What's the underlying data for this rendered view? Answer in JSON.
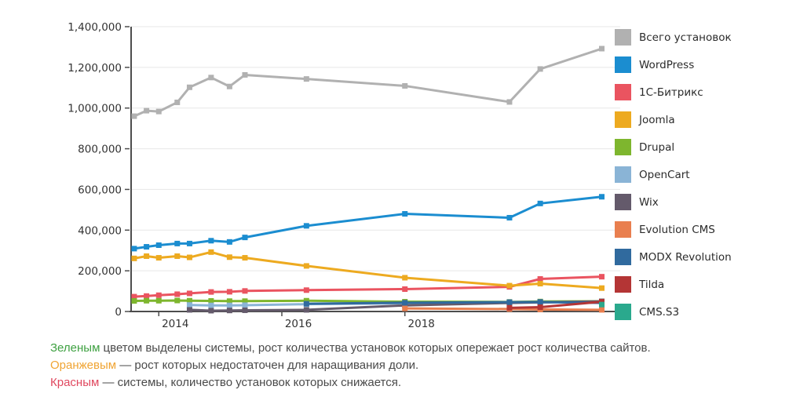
{
  "chart_data": {
    "type": "line",
    "title": "",
    "xlabel": "",
    "ylabel": "",
    "grid": true,
    "legend_position": "right",
    "xlim": [
      2013.55,
      2021.5
    ],
    "ylim": [
      0,
      1400000
    ],
    "y_ticks": [
      0,
      200000,
      400000,
      600000,
      800000,
      1000000,
      1200000,
      1400000
    ],
    "y_tick_labels": [
      "0",
      "200,000",
      "400,000",
      "600,000",
      "800,000",
      "1,000,000",
      "1,200,000",
      "1,400,000"
    ],
    "x_tick_positions": [
      2014,
      2016,
      2018
    ],
    "x_tick_labels": [
      "2014",
      "2016",
      "2018"
    ],
    "x": [
      2013.6,
      2013.8,
      2014.0,
      2014.3,
      2014.5,
      2014.85,
      2015.15,
      2015.4,
      2016.4,
      2018.0,
      2019.7,
      2020.2,
      2021.2
    ],
    "series": [
      {
        "id": "total-installs",
        "name": "Всего установок",
        "color": "#b1b1b1",
        "values": [
          960000,
          987000,
          983000,
          1028000,
          1102000,
          1150000,
          1106000,
          1163000,
          1143000,
          1109000,
          1030000,
          1192000,
          1292000
        ]
      },
      {
        "id": "wordpress",
        "name": "WordPress",
        "color": "#1b8dd0",
        "values": [
          309000,
          318000,
          326000,
          334000,
          334000,
          348000,
          342000,
          364000,
          421000,
          480000,
          461000,
          531000,
          564000
        ]
      },
      {
        "id": "1c-bitrix",
        "name": "1С-Битрикс",
        "color": "#ea5460",
        "values": [
          73000,
          76000,
          80000,
          85000,
          89000,
          96000,
          97000,
          101000,
          105000,
          110000,
          121000,
          160000,
          171000
        ]
      },
      {
        "id": "joomla",
        "name": "Joomla",
        "color": "#edaa20",
        "values": [
          261000,
          272000,
          264000,
          272000,
          266000,
          292000,
          267000,
          264000,
          224000,
          166000,
          127000,
          137000,
          115000
        ]
      },
      {
        "id": "drupal",
        "name": "Drupal",
        "color": "#7eb62e",
        "values": [
          52000,
          53000,
          53000,
          54000,
          53000,
          52000,
          51000,
          51000,
          53000,
          48000,
          47000,
          49000,
          50000
        ]
      },
      {
        "id": "opencart",
        "name": "OpenCart",
        "color": "#8ab4d6",
        "values": [
          null,
          null,
          null,
          null,
          32000,
          30000,
          30000,
          31000,
          36000,
          41000,
          44000,
          45000,
          46000
        ]
      },
      {
        "id": "wix",
        "name": "Wix",
        "color": "#645a6b",
        "values": [
          null,
          null,
          null,
          null,
          8000,
          4000,
          5000,
          6000,
          8000,
          30000,
          42000,
          45000,
          50000
        ]
      },
      {
        "id": "evolution-cms",
        "name": "Evolution CMS",
        "color": "#e97f4f",
        "values": [
          null,
          null,
          null,
          null,
          null,
          null,
          null,
          null,
          null,
          15000,
          12000,
          10000,
          8000
        ]
      },
      {
        "id": "modx-revolution",
        "name": "MODX Revolution",
        "color": "#306a9e",
        "values": [
          null,
          null,
          null,
          null,
          null,
          null,
          null,
          null,
          38000,
          43000,
          46000,
          47000,
          42000
        ]
      },
      {
        "id": "tilda",
        "name": "Tilda",
        "color": "#b43535",
        "values": [
          null,
          null,
          null,
          null,
          null,
          null,
          null,
          null,
          null,
          null,
          18000,
          21000,
          48000
        ]
      },
      {
        "id": "cms-s3",
        "name": "CMS.S3",
        "color": "#2aa98d",
        "values": [
          null,
          null,
          null,
          null,
          null,
          null,
          null,
          null,
          null,
          null,
          null,
          null,
          34000
        ]
      }
    ]
  },
  "annotations": {
    "green_lead": "Зеленым",
    "green_text": " цветом выделены системы, рост количества установок которых опережает рост количества сайтов.",
    "orange_lead": "Оранжевым",
    "orange_text": " — рост которых недостаточен для наращивания доли.",
    "red_lead": "Красным",
    "red_text": " — системы, количество установок которых снижается.",
    "colors": {
      "green": "#3fa142",
      "orange": "#f0a433",
      "red": "#e0485f"
    }
  }
}
